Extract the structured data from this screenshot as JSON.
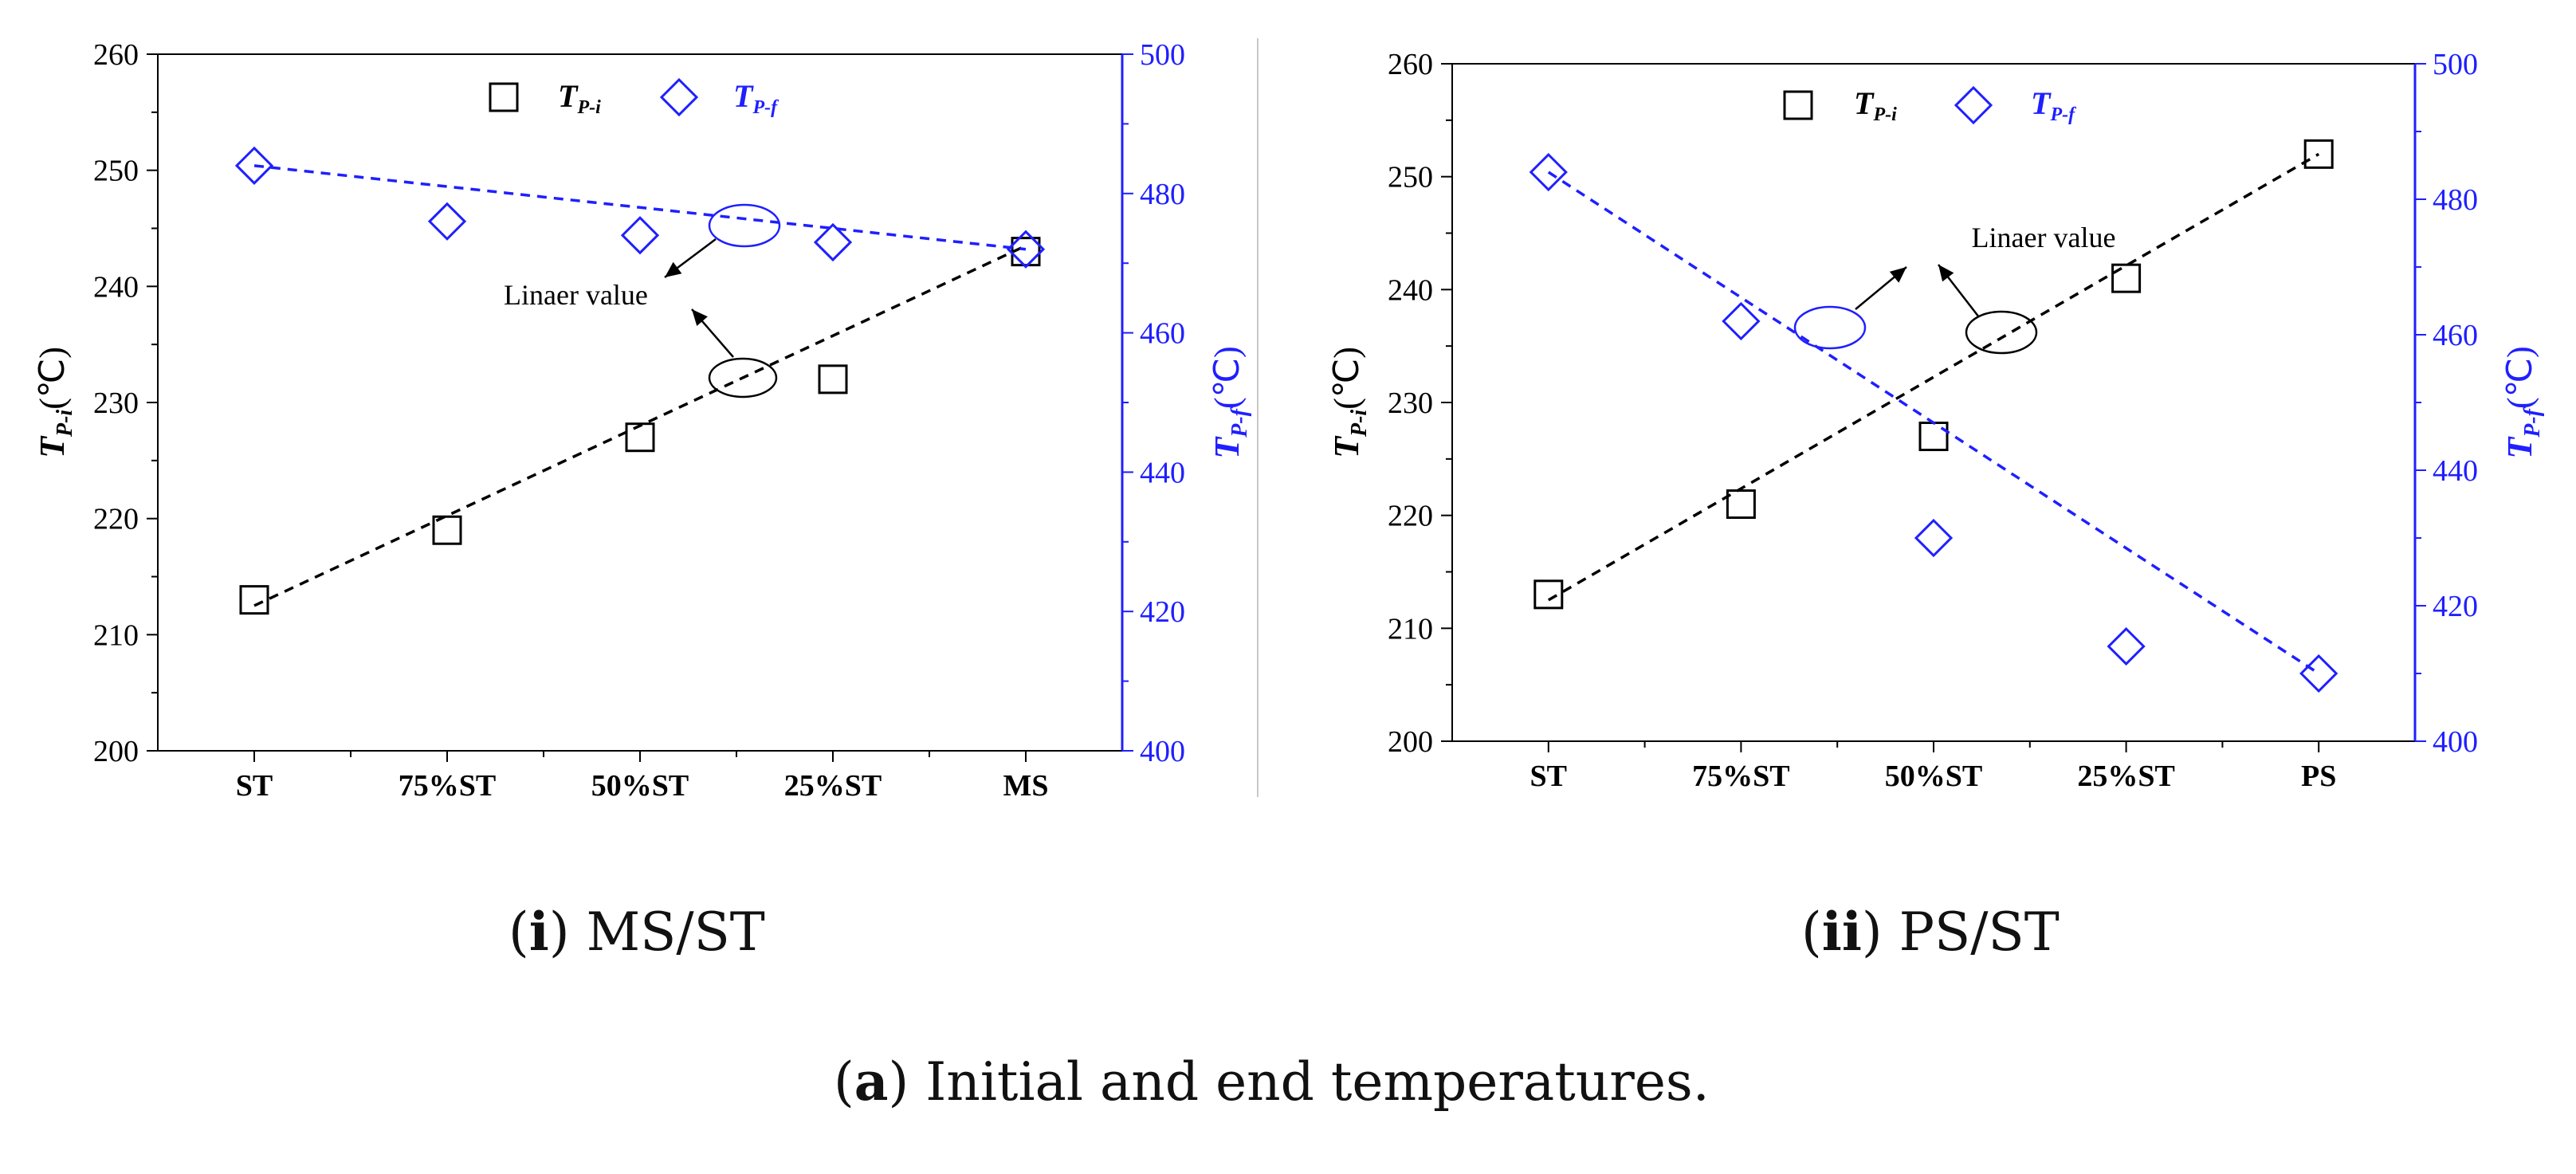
{
  "figure": {
    "caption_label": "a",
    "caption_text": "Initial and end temperatures.",
    "colors": {
      "black": "#000000",
      "blue": "#1f1fff"
    }
  },
  "chart_data": [
    {
      "type": "scatter",
      "panel_label": "i",
      "panel_title": "MS/ST",
      "categories": [
        "ST",
        "75%ST",
        "50%ST",
        "25%ST",
        "MS"
      ],
      "left_axis": {
        "label_main": "T",
        "label_sub": "P-i",
        "label_unit": "(℃)",
        "ylim": [
          200,
          260
        ],
        "ticks": [
          "200",
          "210",
          "220",
          "230",
          "240",
          "250",
          "260"
        ]
      },
      "right_axis": {
        "label_main": "T",
        "label_sub": "P-f",
        "label_unit": "(℃)",
        "ylim": [
          400,
          500
        ],
        "ticks": [
          "400",
          "420",
          "440",
          "460",
          "480",
          "500"
        ]
      },
      "series": [
        {
          "name": "T_P-i",
          "legend_main": "T",
          "legend_sub": "P-i",
          "marker": "square",
          "axis": "left",
          "color": "#000000",
          "values": [
            213,
            219,
            227,
            232,
            243
          ],
          "linear_fit": [
            212.5,
            243.5
          ]
        },
        {
          "name": "T_P-f",
          "legend_main": "T",
          "legend_sub": "P-f",
          "marker": "diamond",
          "axis": "right",
          "color": "#1f1fff",
          "values": [
            484,
            476,
            474,
            473,
            472
          ],
          "linear_fit": [
            484,
            472
          ]
        }
      ],
      "annotation": "Linaer value"
    },
    {
      "type": "scatter",
      "panel_label": "ii",
      "panel_title": "PS/ST",
      "categories": [
        "ST",
        "75%ST",
        "50%ST",
        "25%ST",
        "PS"
      ],
      "left_axis": {
        "label_main": "T",
        "label_sub": "P-i",
        "label_unit": "(℃)",
        "ylim": [
          200,
          260
        ],
        "ticks": [
          "200",
          "210",
          "220",
          "230",
          "240",
          "250",
          "260"
        ]
      },
      "right_axis": {
        "label_main": "T",
        "label_sub": "P-f",
        "label_unit": "(℃)",
        "ylim": [
          400,
          500
        ],
        "ticks": [
          "400",
          "420",
          "440",
          "460",
          "480",
          "500"
        ]
      },
      "series": [
        {
          "name": "T_P-i",
          "legend_main": "T",
          "legend_sub": "P-i",
          "marker": "square",
          "axis": "left",
          "color": "#000000",
          "values": [
            213,
            221,
            227,
            241,
            252
          ],
          "linear_fit": [
            212.5,
            252
          ]
        },
        {
          "name": "T_P-f",
          "legend_main": "T",
          "legend_sub": "P-f",
          "marker": "diamond",
          "axis": "right",
          "color": "#1f1fff",
          "values": [
            484,
            462,
            430,
            414,
            410
          ],
          "linear_fit": [
            484,
            410
          ]
        }
      ],
      "annotation": "Linaer value"
    }
  ]
}
